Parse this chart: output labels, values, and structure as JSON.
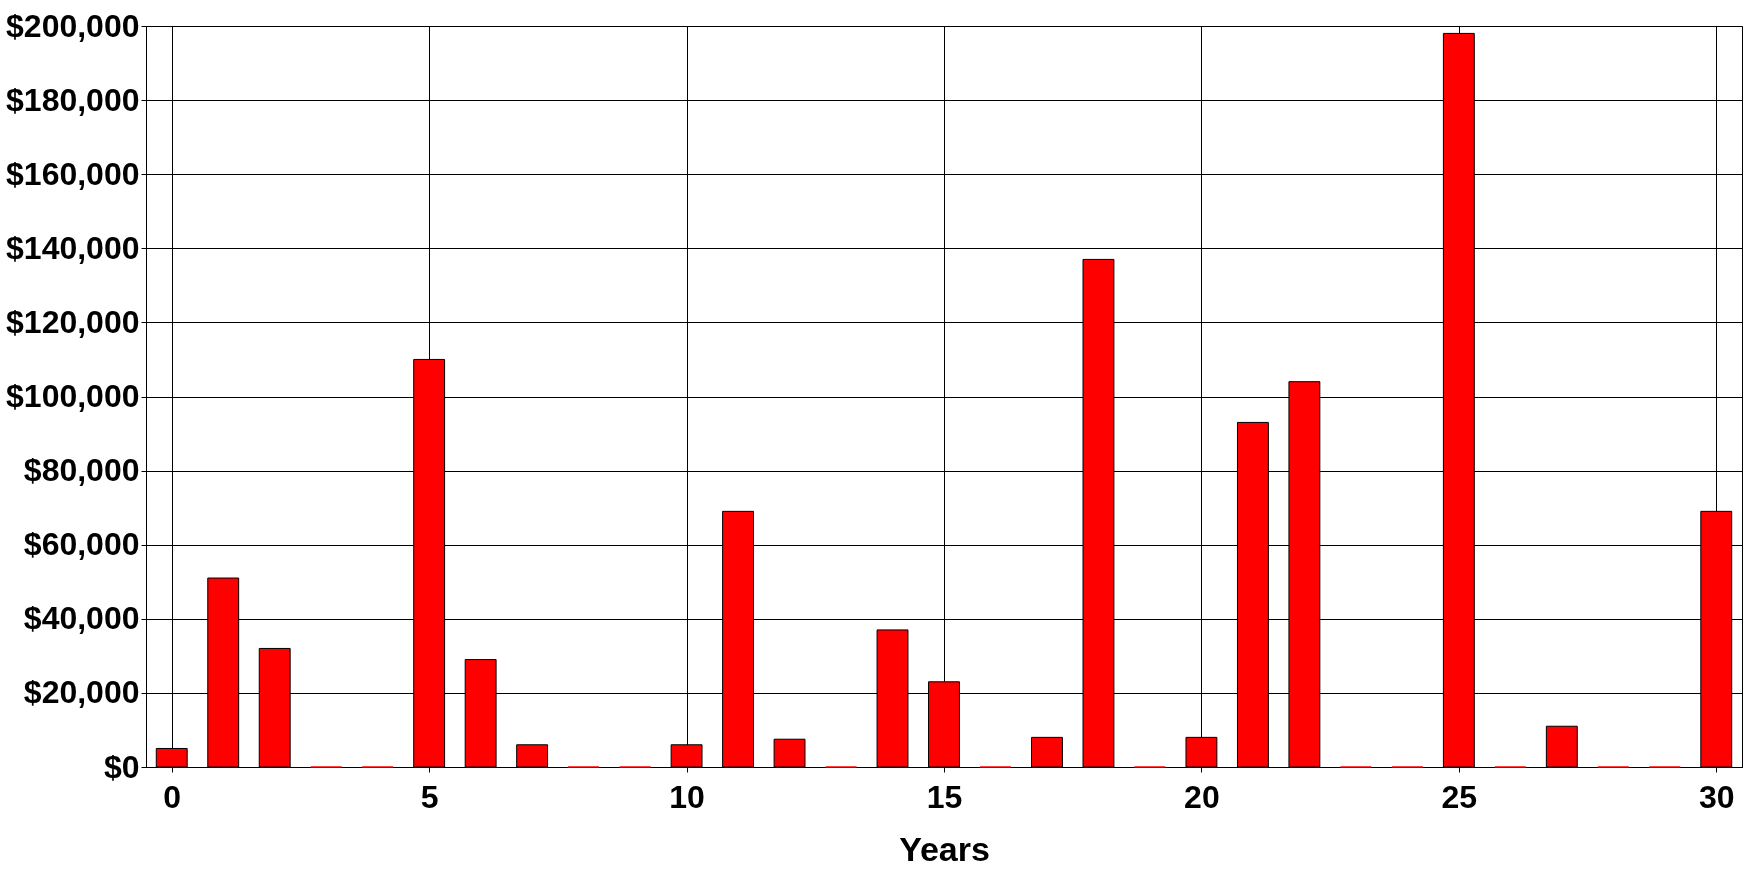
{
  "chart_data": {
    "type": "bar",
    "xlabel": "Years",
    "x": [
      0,
      1,
      2,
      3,
      4,
      5,
      6,
      7,
      8,
      9,
      10,
      11,
      12,
      13,
      14,
      15,
      16,
      17,
      18,
      19,
      20,
      21,
      22,
      23,
      24,
      25,
      26,
      27,
      28,
      29,
      30
    ],
    "values": [
      5000,
      51000,
      32000,
      0,
      0,
      110000,
      29000,
      6000,
      0,
      0,
      6000,
      69000,
      7500,
      0,
      37000,
      23000,
      0,
      8000,
      137000,
      0,
      8000,
      93000,
      104000,
      0,
      0,
      198000,
      0,
      11000,
      0,
      0,
      69000
    ],
    "color": "#ff0000",
    "xlim": [
      -0.5,
      30.5
    ],
    "xticks": [
      0,
      5,
      10,
      15,
      20,
      25,
      30
    ],
    "ylim": [
      0,
      200000
    ],
    "yticks": [
      {
        "value": 0,
        "label": "$0"
      },
      {
        "value": 20000,
        "label": "$20,000"
      },
      {
        "value": 40000,
        "label": "$40,000"
      },
      {
        "value": 60000,
        "label": "$60,000"
      },
      {
        "value": 80000,
        "label": "$80,000"
      },
      {
        "value": 100000,
        "label": "$100,000"
      },
      {
        "value": 120000,
        "label": "$120,000"
      },
      {
        "value": 140000,
        "label": "$140,000"
      },
      {
        "value": 160000,
        "label": "$160,000"
      },
      {
        "value": 180000,
        "label": "$180,000"
      },
      {
        "value": 200000,
        "label": "$200,000"
      }
    ],
    "grid": true
  }
}
